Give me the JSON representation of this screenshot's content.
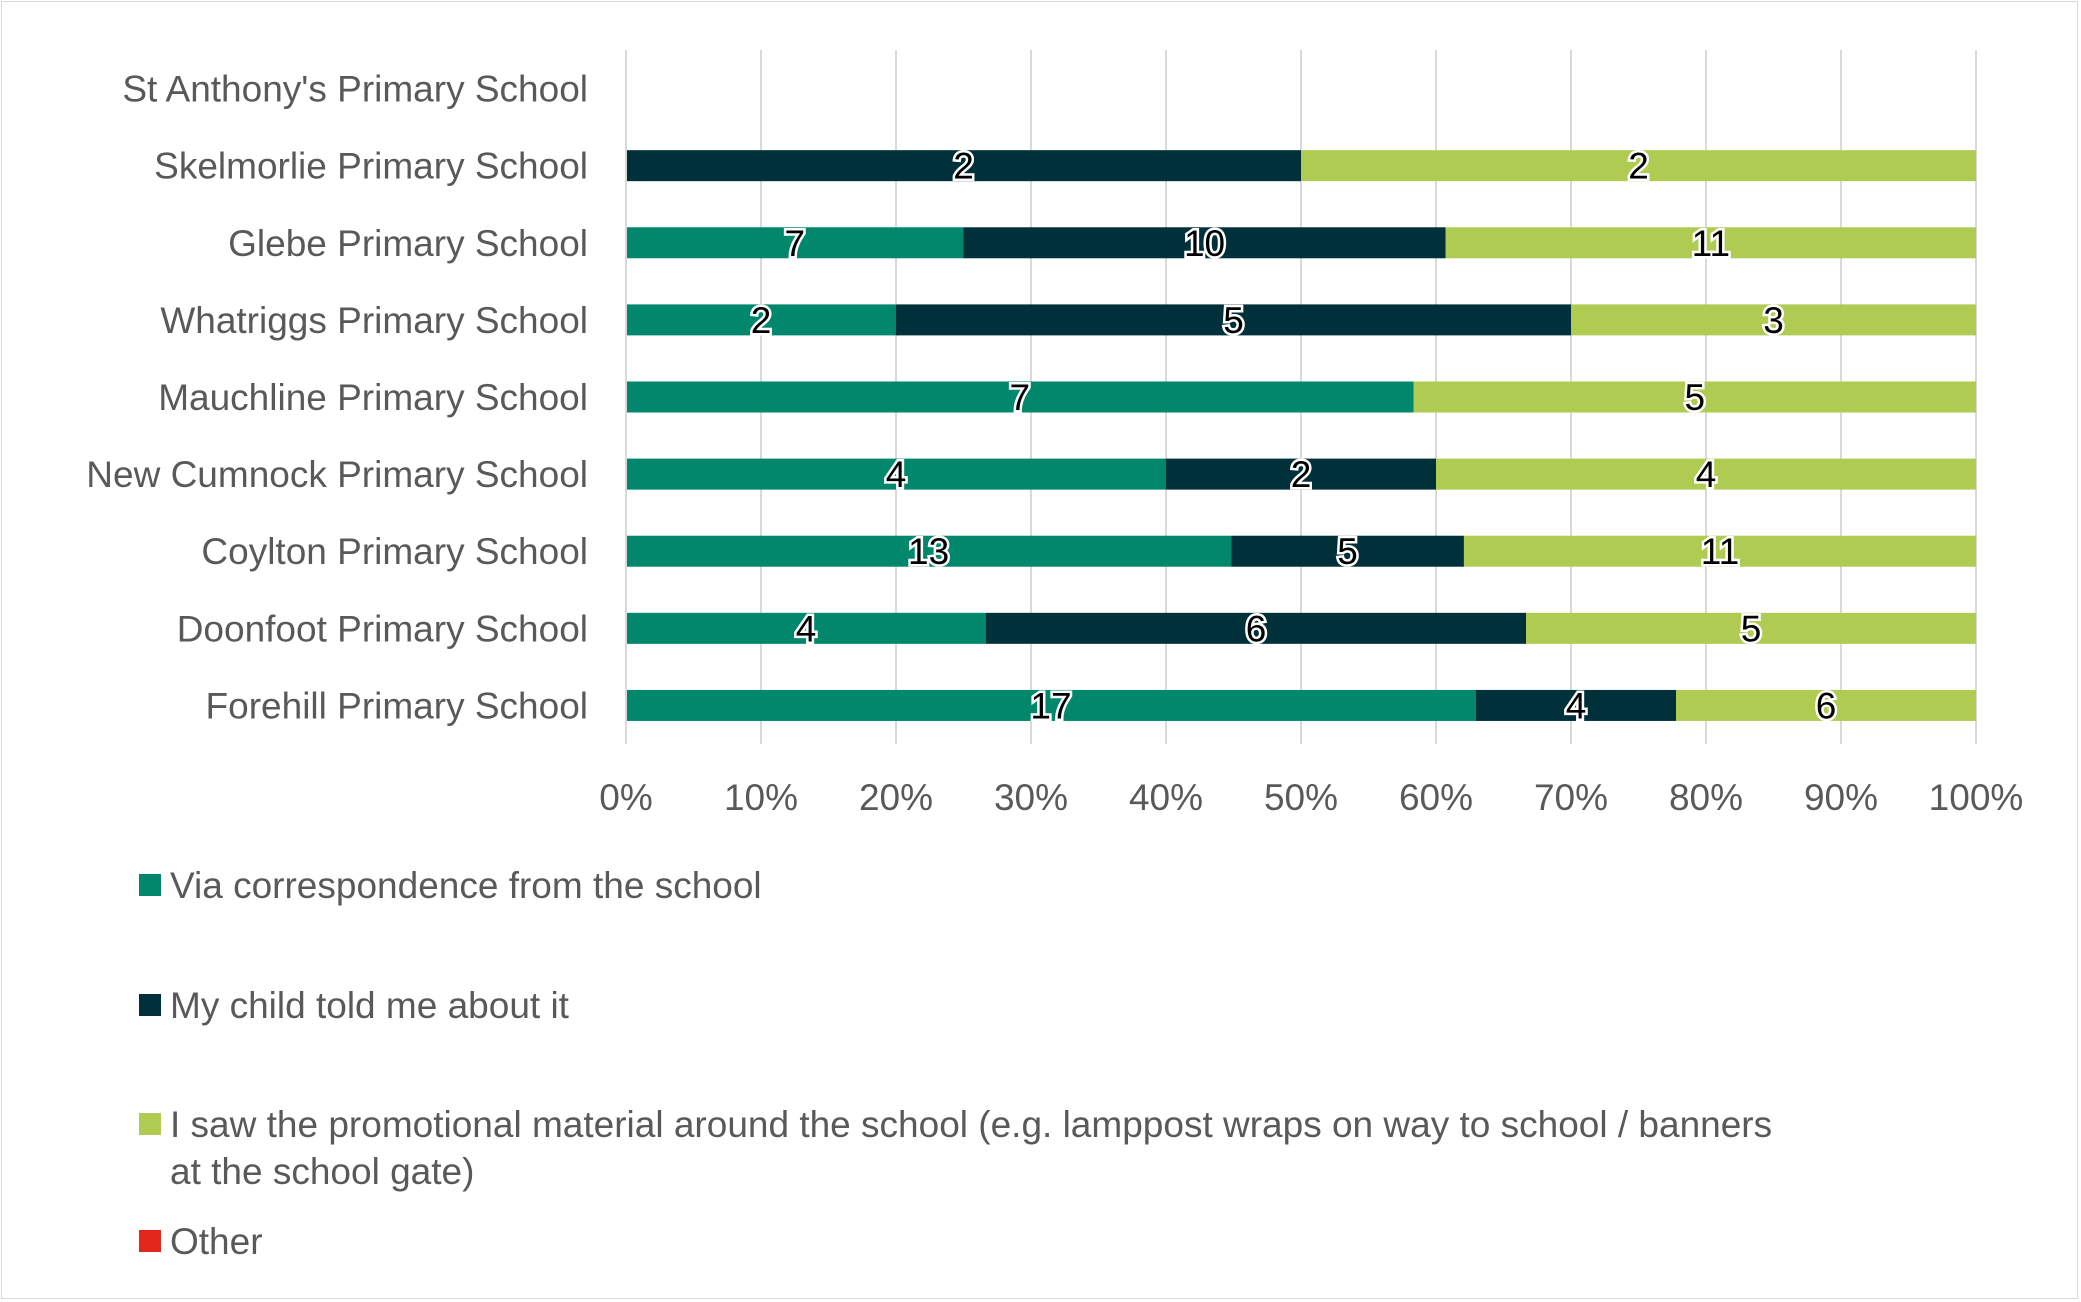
{
  "chart_data": {
    "type": "bar",
    "orientation": "horizontal",
    "stacked": "percent",
    "categories": [
      "St Anthony's Primary School",
      "Skelmorlie Primary School",
      "Glebe Primary School",
      "Whatriggs Primary School",
      "Mauchline Primary School",
      "New Cumnock Primary School",
      "Coylton Primary School",
      "Doonfoot Primary School",
      "Forehill Primary School"
    ],
    "series": [
      {
        "name": "Via correspondence from the school",
        "color": "#00876C",
        "values": [
          0,
          0,
          7,
          2,
          7,
          4,
          13,
          4,
          17
        ]
      },
      {
        "name": "My child told me about it",
        "color": "#00313A",
        "values": [
          0,
          2,
          10,
          5,
          0,
          2,
          5,
          6,
          4
        ]
      },
      {
        "name": "I saw the promotional material around the school (e.g. lamppost wraps on way to school / banners at the school gate)",
        "color": "#AFCB52",
        "values": [
          0,
          2,
          11,
          3,
          5,
          4,
          11,
          5,
          6
        ]
      },
      {
        "name": "Other",
        "color": "#E3281B",
        "values": [
          0,
          0,
          0,
          0,
          0,
          0,
          0,
          0,
          0
        ]
      }
    ],
    "xlim": [
      0,
      100
    ],
    "xticks": [
      "0%",
      "10%",
      "20%",
      "30%",
      "40%",
      "50%",
      "60%",
      "70%",
      "80%",
      "90%",
      "100%"
    ],
    "grid": "vertical",
    "data_labels": true,
    "legend_position": "bottom",
    "title": "",
    "xlabel": "",
    "ylabel": ""
  }
}
